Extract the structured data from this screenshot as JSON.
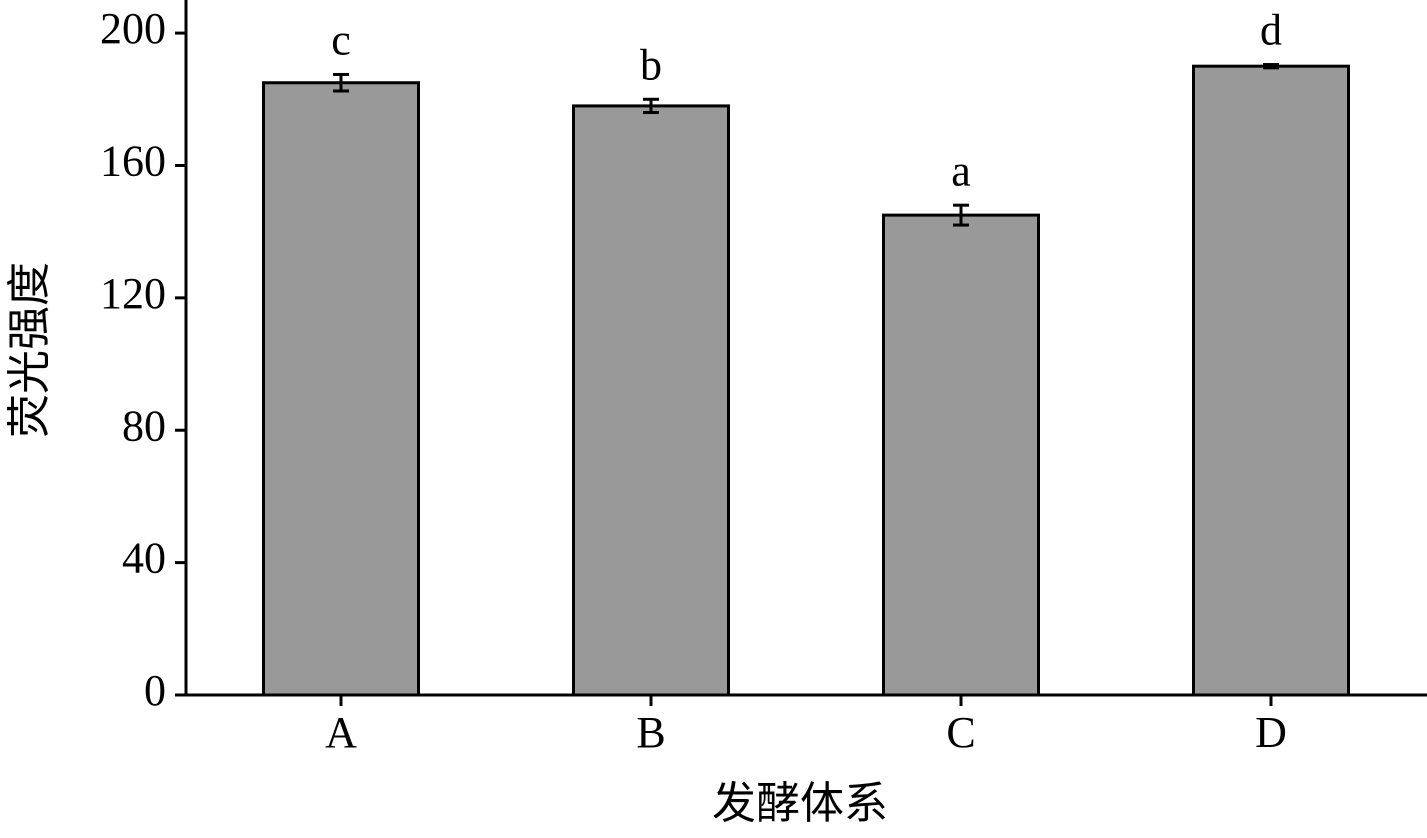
{
  "chart_data": {
    "type": "bar",
    "x_label": "发酵体系",
    "y_label": "荧光强度",
    "categories": [
      "A",
      "B",
      "C",
      "D"
    ],
    "values": [
      185,
      178,
      145,
      190
    ],
    "errors": [
      2.5,
      2,
      3,
      0.5
    ],
    "annotations": [
      "c",
      "b",
      "a",
      "d"
    ],
    "color": "#999999",
    "ylim": [
      0,
      210
    ],
    "yticks": [
      0,
      40,
      80,
      120,
      160,
      200
    ],
    "grid": false
  }
}
